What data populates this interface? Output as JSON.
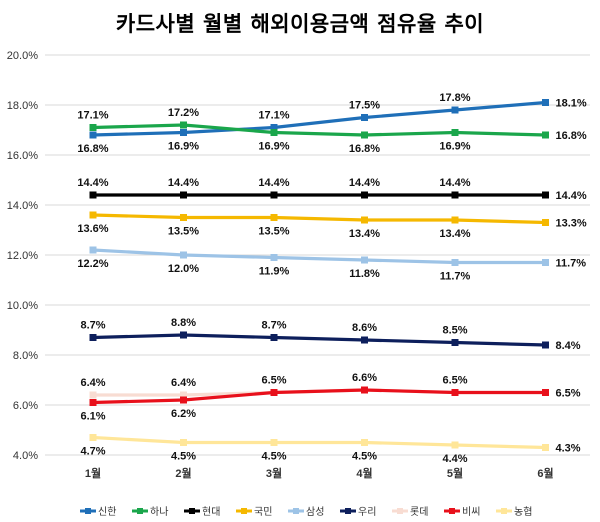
{
  "chart_data": {
    "type": "line",
    "title": "카드사별 월별 해외이용금액 점유율 추이",
    "xlabel": "",
    "ylabel": "",
    "categories": [
      "1월",
      "2월",
      "3월",
      "4월",
      "5월",
      "6월"
    ],
    "ylim": [
      4.0,
      20.0
    ],
    "yticks": [
      "4.0%",
      "6.0%",
      "8.0%",
      "10.0%",
      "12.0%",
      "14.0%",
      "16.0%",
      "18.0%",
      "20.0%"
    ],
    "grid": true,
    "legend_position": "bottom",
    "series": [
      {
        "name": "신한",
        "color": "#1f6fb8",
        "values": [
          16.8,
          16.9,
          17.1,
          17.5,
          17.8,
          18.1
        ],
        "labels": [
          "16.8%",
          "16.9%",
          "17.1%",
          "17.5%",
          "17.8%",
          "18.1%"
        ]
      },
      {
        "name": "하나",
        "color": "#1aa64b",
        "values": [
          17.1,
          17.2,
          16.9,
          16.8,
          16.9,
          16.8
        ],
        "labels": [
          "17.1%",
          "17.2%",
          "16.9%",
          "16.8%",
          "16.9%",
          "16.8%"
        ]
      },
      {
        "name": "현대",
        "color": "#000000",
        "values": [
          14.4,
          14.4,
          14.4,
          14.4,
          14.4,
          14.4
        ],
        "labels": [
          "14.4%",
          "14.4%",
          "14.4%",
          "14.4%",
          "14.4%",
          "14.4%"
        ]
      },
      {
        "name": "국민",
        "color": "#f5b800",
        "values": [
          13.6,
          13.5,
          13.5,
          13.4,
          13.4,
          13.3
        ],
        "labels": [
          "13.6%",
          "13.5%",
          "13.5%",
          "13.4%",
          "13.4%",
          "13.3%"
        ]
      },
      {
        "name": "삼성",
        "color": "#9dc3e6",
        "values": [
          12.2,
          12.0,
          11.9,
          11.8,
          11.7,
          11.7
        ],
        "labels": [
          "12.2%",
          "12.0%",
          "11.9%",
          "11.8%",
          "11.7%",
          "11.7%"
        ]
      },
      {
        "name": "우리",
        "color": "#0d1f5c",
        "values": [
          8.7,
          8.8,
          8.7,
          8.6,
          8.5,
          8.4
        ],
        "labels": [
          "8.7%",
          "8.8%",
          "8.7%",
          "8.6%",
          "8.5%",
          "8.4%"
        ]
      },
      {
        "name": "롯데",
        "color": "#f8dcd2",
        "values": [
          6.4,
          6.4,
          6.5,
          6.6,
          6.5,
          6.5
        ],
        "labels": [
          "6.4%",
          "6.4%",
          "",
          "",
          "",
          ""
        ]
      },
      {
        "name": "비씨",
        "color": "#e8101b",
        "values": [
          6.1,
          6.2,
          6.5,
          6.6,
          6.5,
          6.5
        ],
        "labels": [
          "6.1%",
          "6.2%",
          "6.5%",
          "6.6%",
          "6.5%",
          "6.5%"
        ]
      },
      {
        "name": "농협",
        "color": "#ffe699",
        "values": [
          4.7,
          4.5,
          4.5,
          4.5,
          4.4,
          4.3
        ],
        "labels": [
          "4.7%",
          "4.5%",
          "4.5%",
          "4.5%",
          "4.4%",
          "4.3%"
        ]
      }
    ]
  }
}
